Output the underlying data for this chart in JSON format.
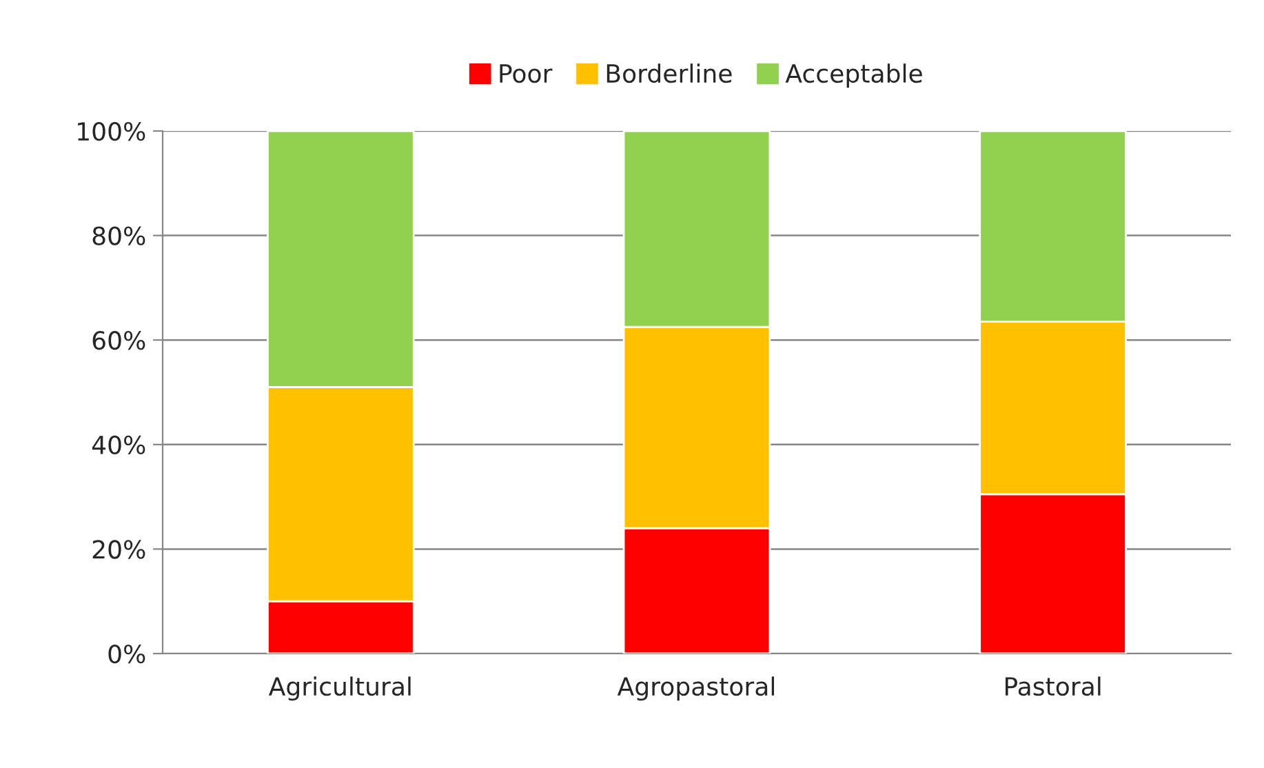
{
  "chart_data": {
    "type": "bar",
    "stacked": true,
    "categories": [
      "Agricultural",
      "Agropastoral",
      "Pastoral"
    ],
    "series": [
      {
        "name": "Poor",
        "color": "#ff0000",
        "values": [
          10,
          24,
          30.5
        ]
      },
      {
        "name": "Borderline",
        "color": "#ffc000",
        "values": [
          41,
          38.5,
          33
        ]
      },
      {
        "name": "Acceptable",
        "color": "#92d050",
        "values": [
          49,
          37.5,
          36.5
        ]
      }
    ],
    "ylim": [
      0,
      100
    ],
    "yticks": [
      {
        "value": 0,
        "label": "0%"
      },
      {
        "value": 20,
        "label": "20%"
      },
      {
        "value": 40,
        "label": "40%"
      },
      {
        "value": 60,
        "label": "60%"
      },
      {
        "value": 80,
        "label": "80%"
      },
      {
        "value": 100,
        "label": "100%"
      }
    ],
    "grid": "y",
    "legend": "top"
  }
}
